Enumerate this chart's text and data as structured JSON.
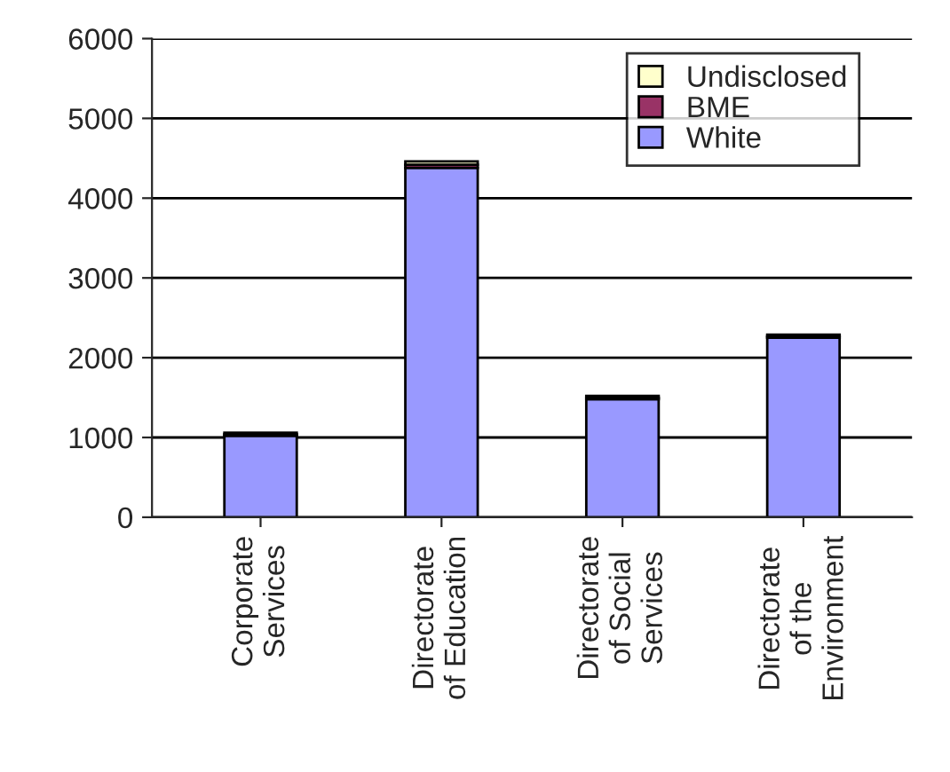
{
  "chart_data": {
    "type": "bar",
    "stacked": true,
    "categories": [
      "Corporate\nServices",
      "Directorate\nof Education",
      "Directorate\nof Social\nServices",
      "Directorate\nof the\nEnvironment"
    ],
    "series": [
      {
        "name": "White",
        "color": "#9999ff",
        "values": [
          1020,
          4380,
          1480,
          2250
        ]
      },
      {
        "name": "BME",
        "color": "#993366",
        "values": [
          20,
          40,
          20,
          20
        ]
      },
      {
        "name": "Undisclosed",
        "color": "#ffffcc",
        "values": [
          20,
          40,
          20,
          20
        ]
      }
    ],
    "ylim": [
      0,
      6000
    ],
    "yticks": [
      0,
      1000,
      2000,
      3000,
      4000,
      5000,
      6000
    ],
    "grid": "y",
    "legend": "top right"
  }
}
